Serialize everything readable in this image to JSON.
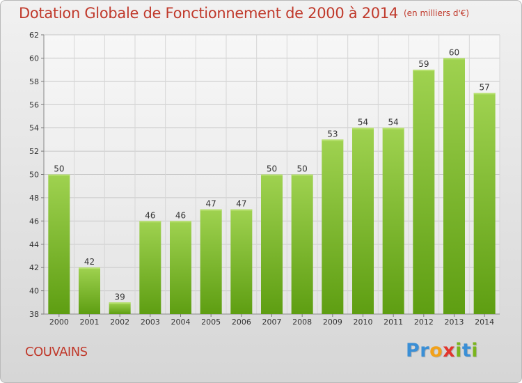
{
  "header": {
    "title": "Dotation Globale de Fonctionnement de 2000 à 2014",
    "unit": "(en milliers d'€)"
  },
  "footer": {
    "commune": "COUVAINS",
    "logo_letters": [
      {
        "char": "P",
        "color": "#3a8fd6"
      },
      {
        "char": "r",
        "color": "#3a8fd6"
      },
      {
        "char": "o",
        "color": "#f2a119"
      },
      {
        "char": "x",
        "color": "#e2352d"
      },
      {
        "char": "i",
        "color": "#7ab51d"
      },
      {
        "char": "t",
        "color": "#3a8fd6"
      },
      {
        "char": "i",
        "color": "#7ab51d"
      }
    ]
  },
  "colors": {
    "title": "#c0392b",
    "bar_top": "#9fd250",
    "bar_bottom": "#5e9e12"
  },
  "chart_data": {
    "type": "bar",
    "title": "Dotation Globale de Fonctionnement de 2000 à 2014",
    "subtitle": "(en milliers d'€)",
    "categories": [
      "2000",
      "2001",
      "2002",
      "2003",
      "2004",
      "2005",
      "2006",
      "2007",
      "2008",
      "2009",
      "2010",
      "2011",
      "2012",
      "2013",
      "2014"
    ],
    "values": [
      50,
      42,
      39,
      46,
      46,
      47,
      47,
      50,
      50,
      53,
      54,
      54,
      59,
      60,
      57
    ],
    "ylim": [
      38,
      62
    ],
    "yticks": [
      38,
      40,
      42,
      44,
      46,
      48,
      50,
      52,
      54,
      56,
      58,
      60,
      62
    ],
    "grid": true
  }
}
